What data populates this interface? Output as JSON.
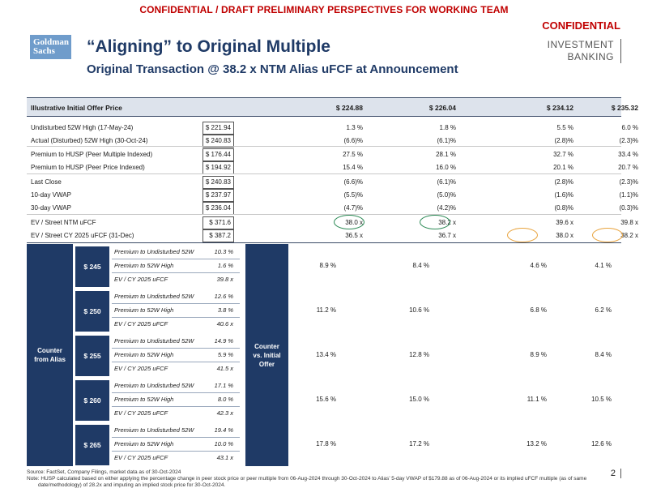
{
  "banner": "CONFIDENTIAL / DRAFT PRELIMINARY PERSPECTIVES FOR WORKING TEAM",
  "confidential": "CONFIDENTIAL",
  "logo": {
    "line1": "Goldman",
    "line2": "Sachs"
  },
  "title": "“Aligning” to Original Multiple",
  "subtitle": "Original Transaction @ 38.2 x NTM Alias uFCF at Announcement",
  "ib": {
    "line1": "INVESTMENT",
    "line2": "BANKING"
  },
  "header": {
    "label": "Illustrative Initial Offer Price",
    "prices": [
      "$ 224.88",
      "$ 226.04",
      "$ 234.12",
      "$ 235.32"
    ]
  },
  "rows": [
    {
      "label": "Undisturbed 52W High (17-May-24)",
      "ref": "$ 221.94",
      "vals": [
        "1.3 %",
        "1.8 %",
        "5.5 %",
        "6.0 %"
      ]
    },
    {
      "label": "Actual (Disturbed) 52W High (30-Oct-24)",
      "ref": "$ 240.83",
      "vals": [
        "(6.6)%",
        "(6.1)%",
        "(2.8)%",
        "(2.3)%"
      ]
    },
    {
      "label": "Premium to HUSP (Peer Multiple Indexed)",
      "ref": "$ 176.44",
      "vals": [
        "27.5 %",
        "28.1 %",
        "32.7 %",
        "33.4 %"
      ]
    },
    {
      "label": "Premium to HUSP (Peer Price Indexed)",
      "ref": "$ 194.92",
      "vals": [
        "15.4 %",
        "16.0 %",
        "20.1 %",
        "20.7 %"
      ]
    },
    {
      "label": "Last Close",
      "ref": "$ 240.83",
      "vals": [
        "(6.6)%",
        "(6.1)%",
        "(2.8)%",
        "(2.3)%"
      ]
    },
    {
      "label": "10-day VWAP",
      "ref": "$ 237.97",
      "vals": [
        "(5.5)%",
        "(5.0)%",
        "(1.6)%",
        "(1.1)%"
      ]
    },
    {
      "label": "30-day VWAP",
      "ref": "$ 236.04",
      "vals": [
        "(4.7)%",
        "(4.2)%",
        "(0.8)%",
        "(0.3)%"
      ]
    },
    {
      "label": "EV / Street NTM uFCF",
      "ref": "$ 371.6",
      "vals": [
        "38.0 x",
        "38.2 x",
        "39.6 x",
        "39.8 x"
      ]
    },
    {
      "label": "EV / Street CY 2025 uFCF (31-Dec)",
      "ref": "$ 387.2",
      "vals": [
        "36.5 x",
        "36.7 x",
        "38.0 x",
        "38.2 x"
      ]
    }
  ],
  "counter": {
    "side_label_1": "Counter",
    "side_label_2": "from Alias",
    "mid_label_1": "Counter",
    "mid_label_2": "vs. Initial",
    "mid_label_3": "Offer",
    "sub_labels": [
      "Premium to Undisturbed 52W",
      "Premium to 52W High",
      "EV / CY 2025 uFCF"
    ],
    "blocks": [
      {
        "price": "$ 245",
        "subs": [
          "10.3 %",
          "1.6 %",
          "39.8 x"
        ],
        "vals": [
          "8.9 %",
          "8.4 %",
          "4.6 %",
          "4.1 %"
        ]
      },
      {
        "price": "$ 250",
        "subs": [
          "12.6 %",
          "3.8 %",
          "40.6 x"
        ],
        "vals": [
          "11.2 %",
          "10.6 %",
          "6.8 %",
          "6.2 %"
        ]
      },
      {
        "price": "$ 255",
        "subs": [
          "14.9 %",
          "5.9 %",
          "41.5 x"
        ],
        "vals": [
          "13.4 %",
          "12.8 %",
          "8.9 %",
          "8.4 %"
        ]
      },
      {
        "price": "$ 260",
        "subs": [
          "17.1 %",
          "8.0 %",
          "42.3 x"
        ],
        "vals": [
          "15.6 %",
          "15.0 %",
          "11.1 %",
          "10.5 %"
        ]
      },
      {
        "price": "$ 265",
        "subs": [
          "19.4 %",
          "10.0 %",
          "43.1 x"
        ],
        "vals": [
          "17.8 %",
          "17.2 %",
          "13.2 %",
          "12.6 %"
        ]
      }
    ]
  },
  "footer": {
    "source": "Source: FactSet, Company Filings, market data as of 30-Oct-2024",
    "note": "Note: HUSP calculated based on either applying the percentage change in peer stock price or peer multiple from 06-Aug-2024 through 30-Oct-2024 to Alias’ 5-day VWAP of $179.88 as of 06-Aug-2024 or its implied uFCF multiple (as of same date/methodology) of 28.2x and imputing an implied stock price for 30-Oct-2024."
  },
  "page_number": "2",
  "colors": {
    "navy": "#1f3a66",
    "red": "#c00000",
    "green_circle": "#2e8b57",
    "orange_circle": "#e8a33d"
  }
}
